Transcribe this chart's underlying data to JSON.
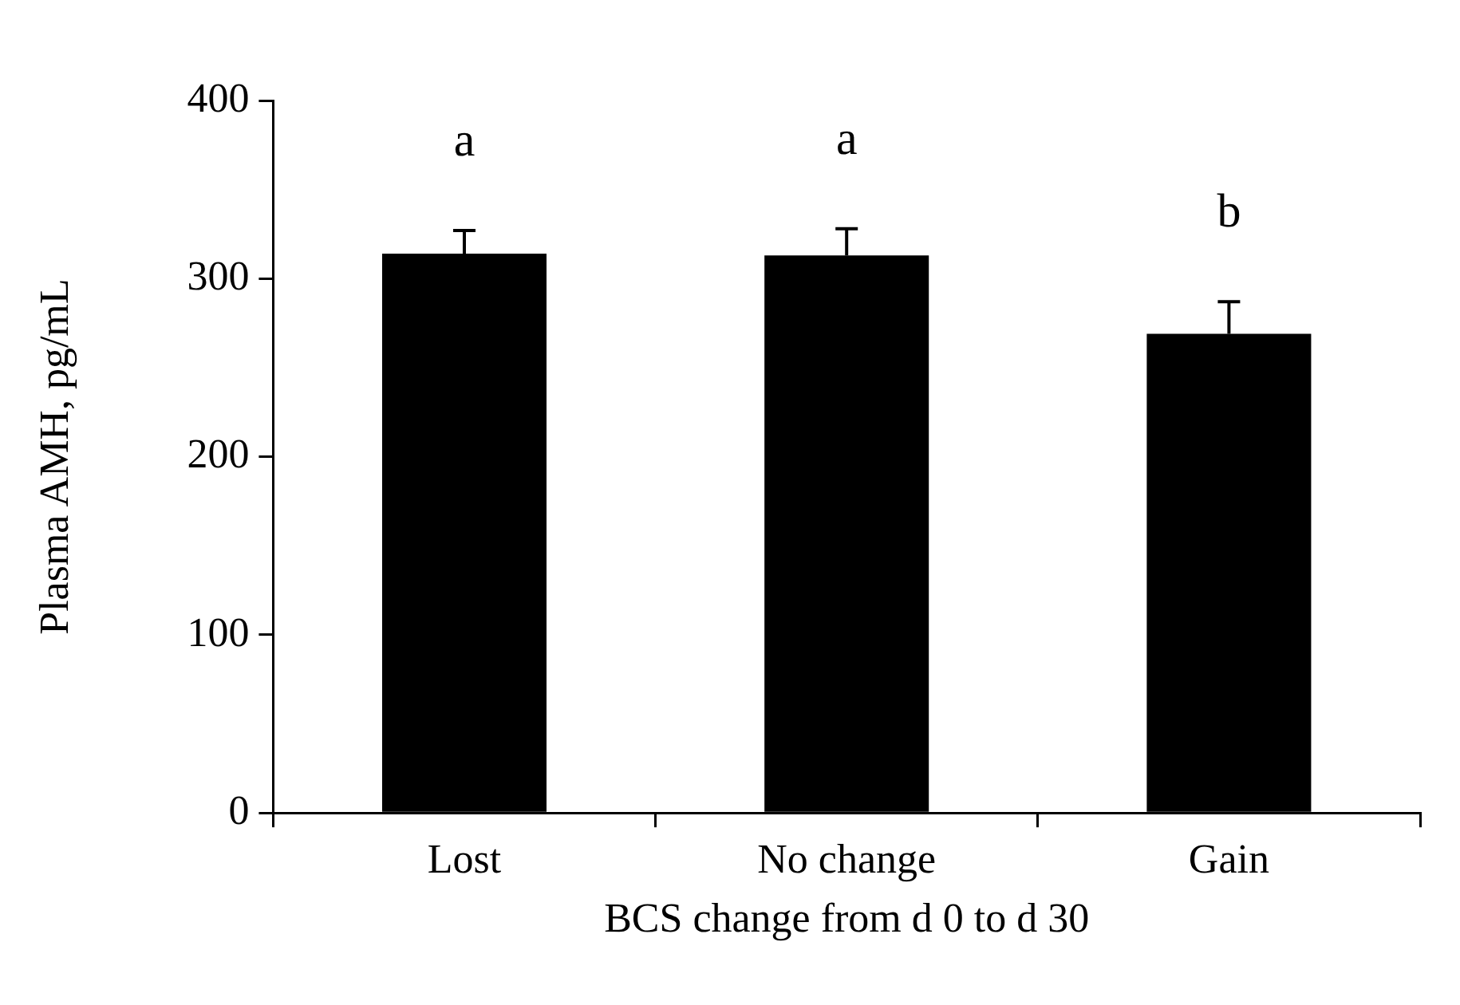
{
  "chart_data": {
    "type": "bar",
    "xlabel": "BCS change from d 0 to d 30",
    "ylabel": "Plasma AMH, pg/mL",
    "categories": [
      "Lost",
      "No change",
      "Gain"
    ],
    "values": [
      314,
      313,
      269
    ],
    "color": "#000000",
    "errors": [
      [
        314,
        327
      ],
      [
        313,
        328
      ],
      [
        269,
        287
      ]
    ],
    "ylim": [
      0,
      400
    ],
    "yticks": [
      0,
      100,
      200,
      300,
      400
    ],
    "grid": false,
    "annotations": [
      "a",
      "a",
      "b"
    ]
  }
}
